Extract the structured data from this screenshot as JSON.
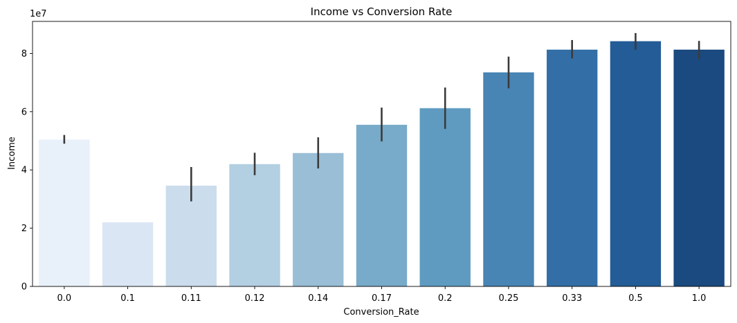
{
  "chart_data": {
    "type": "bar",
    "title": "Income vs Conversion Rate",
    "xlabel": "Conversion_Rate",
    "ylabel": "Income",
    "y_exponent_label": "1e7",
    "categories": [
      "0.0",
      "0.1",
      "0.11",
      "0.12",
      "0.14",
      "0.17",
      "0.2",
      "0.25",
      "0.33",
      "0.5",
      "1.0"
    ],
    "values": [
      50400000,
      22000000,
      34600000,
      42000000,
      45800000,
      55500000,
      61200000,
      73500000,
      81300000,
      84200000,
      81300000
    ],
    "error_bars": [
      [
        49000000,
        52000000
      ],
      null,
      [
        29200000,
        41000000
      ],
      [
        38200000,
        45900000
      ],
      [
        40500000,
        51200000
      ],
      [
        49800000,
        61400000
      ],
      [
        54100000,
        68300000
      ],
      [
        68000000,
        78900000
      ],
      [
        78300000,
        84600000
      ],
      [
        81300000,
        87000000
      ],
      [
        78000000,
        84300000
      ]
    ],
    "bar_colors": [
      "#e8f0f9",
      "#dae6f3",
      "#cbdcec",
      "#b3cfe2",
      "#99bed6",
      "#78aac9",
      "#5f9bc1",
      "#4884b4",
      "#336fa6",
      "#235c96",
      "#1a4a7f"
    ],
    "error_color": "#3a3a3a",
    "ylim": [
      0,
      91000000
    ],
    "y_ticks": [
      0,
      20000000,
      40000000,
      60000000,
      80000000
    ],
    "y_tick_labels": [
      "0",
      "2",
      "4",
      "6",
      "8"
    ],
    "grid": false,
    "legend": "none"
  }
}
